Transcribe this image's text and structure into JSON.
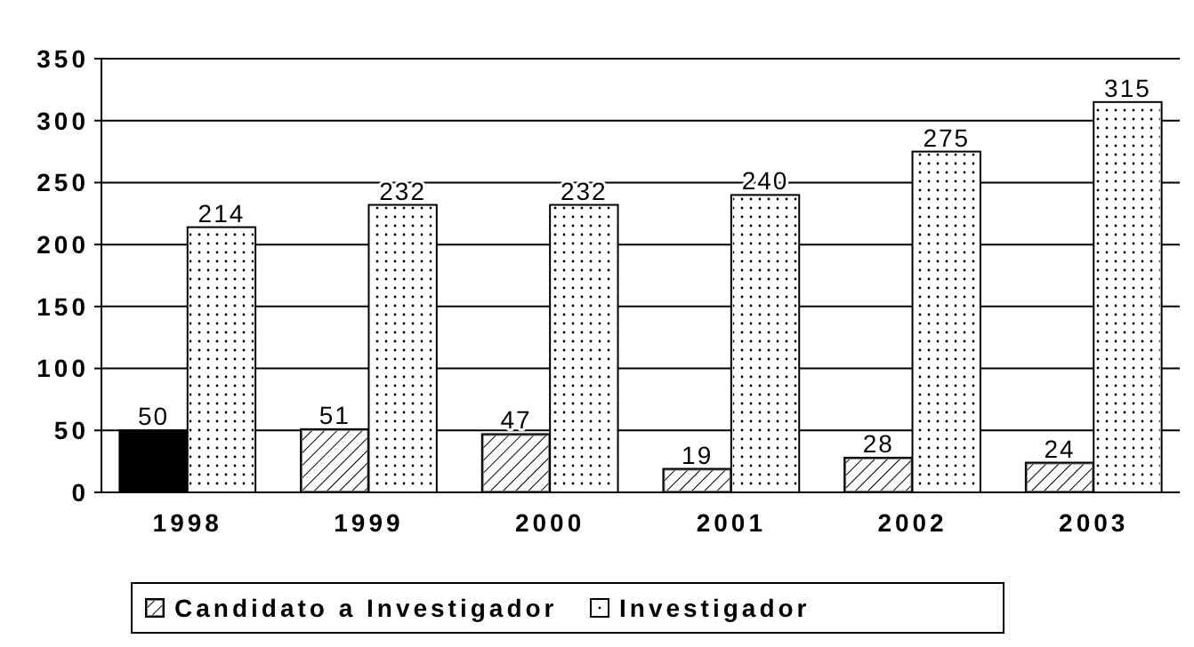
{
  "chart_data": {
    "type": "bar",
    "categories": [
      "1998",
      "1999",
      "2000",
      "2001",
      "2002",
      "2003"
    ],
    "series": [
      {
        "name": "Candidato a Investigador",
        "color": "#808080",
        "colors": [
          "#000000",
          "#808080",
          "#808080",
          "#808080",
          "#808080",
          "#808080"
        ],
        "values": [
          50,
          51,
          47,
          19,
          28,
          24
        ]
      },
      {
        "name": "Investigador",
        "color": "#ffffff",
        "values": [
          214,
          232,
          232,
          240,
          275,
          315
        ]
      }
    ],
    "ylim": [
      0,
      350
    ],
    "yticks": [
      0,
      50,
      100,
      150,
      200,
      250,
      300,
      350
    ],
    "grid": "y",
    "data_labels": true,
    "legend": "bottom"
  }
}
